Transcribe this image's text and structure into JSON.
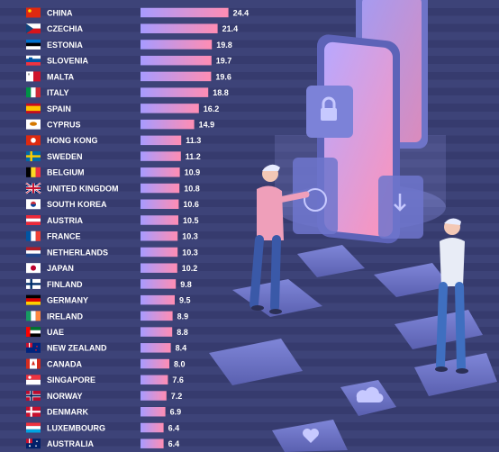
{
  "chart_data": {
    "type": "bar",
    "orientation": "horizontal",
    "categories": [
      "CHINA",
      "CZECHIA",
      "ESTONIA",
      "SLOVENIA",
      "MALTA",
      "ITALY",
      "SPAIN",
      "CYPRUS",
      "HONG KONG",
      "SWEDEN",
      "BELGIUM",
      "UNITED KINGDOM",
      "SOUTH KOREA",
      "AUSTRIA",
      "FRANCE",
      "NETHERLANDS",
      "JAPAN",
      "FINLAND",
      "GERMANY",
      "IRELAND",
      "UAE",
      "NEW ZEALAND",
      "CANADA",
      "SINGAPORE",
      "NORWAY",
      "DENMARK",
      "LUXEMBOURG",
      "AUSTRALIA"
    ],
    "values": [
      24.4,
      21.4,
      19.8,
      19.7,
      19.6,
      18.8,
      16.2,
      14.9,
      11.3,
      11.2,
      10.9,
      10.8,
      10.6,
      10.5,
      10.3,
      10.3,
      10.2,
      9.8,
      9.5,
      8.9,
      8.8,
      8.4,
      8.0,
      7.6,
      7.2,
      6.9,
      6.4,
      6.4
    ],
    "value_labels": [
      "24.4",
      "21.4",
      "19.8",
      "19.7",
      "19.6",
      "18.8",
      "16.2",
      "14.9",
      "11.3",
      "11.2",
      "10.9",
      "10.8",
      "10.6",
      "10.5",
      "10.3",
      "10.3",
      "10.2",
      "9.8",
      "9.5",
      "8.9",
      "8.8",
      "8.4",
      "8.0",
      "7.6",
      "7.2",
      "6.9",
      "6.4",
      "6.4"
    ],
    "xlim": [
      0,
      25.5
    ],
    "grid": false,
    "colors": {
      "bar_start": "#a79bff",
      "bar_end": "#ff8db3",
      "label": "#ffffff",
      "background": "#3a3f73"
    }
  },
  "flags": [
    "china-flag",
    "czechia-flag",
    "estonia-flag",
    "slovenia-flag",
    "malta-flag",
    "italy-flag",
    "spain-flag",
    "cyprus-flag",
    "hong-kong-flag",
    "sweden-flag",
    "belgium-flag",
    "united-kingdom-flag",
    "south-korea-flag",
    "austria-flag",
    "france-flag",
    "netherlands-flag",
    "japan-flag",
    "finland-flag",
    "germany-flag",
    "ireland-flag",
    "uae-flag",
    "new-zealand-flag",
    "canada-flag",
    "singapore-flag",
    "norway-flag",
    "denmark-flag",
    "luxembourg-flag",
    "australia-flag"
  ],
  "illustration": [
    "smartphone-illustration",
    "lock-icon",
    "download-icon",
    "cloud-icon",
    "heart-icon",
    "person-illustration"
  ]
}
